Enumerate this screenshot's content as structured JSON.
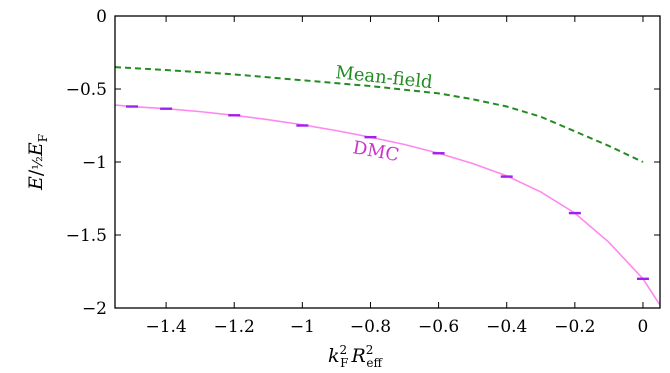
{
  "chart_data": {
    "type": "line",
    "xlabel": "k_F^2 R_eff^2",
    "ylabel": "E / ½ E_F",
    "xlim": [
      -1.55,
      0.05
    ],
    "ylim": [
      -2,
      0
    ],
    "x_ticks": [
      {
        "value": -1.4,
        "label": "−1.4"
      },
      {
        "value": -1.2,
        "label": "−1.2"
      },
      {
        "value": -1.0,
        "label": "−1"
      },
      {
        "value": -0.8,
        "label": "−0.8"
      },
      {
        "value": -0.6,
        "label": "−0.6"
      },
      {
        "value": -0.4,
        "label": "−0.4"
      },
      {
        "value": -0.2,
        "label": "−0.2"
      },
      {
        "value": 0.0,
        "label": "0"
      }
    ],
    "y_ticks": [
      {
        "value": 0,
        "label": "0"
      },
      {
        "value": -0.5,
        "label": "−0.5"
      },
      {
        "value": -1,
        "label": "−1"
      },
      {
        "value": -1.5,
        "label": "−1.5"
      },
      {
        "value": -2,
        "label": "−2"
      }
    ],
    "grid": false,
    "series": [
      {
        "name": "Mean-field",
        "style": "dashed",
        "color": "#228b22",
        "x": [
          -1.55,
          -1.4,
          -1.2,
          -1.0,
          -0.8,
          -0.6,
          -0.5,
          -0.4,
          -0.3,
          -0.2,
          -0.1,
          0.0
        ],
        "y": [
          -0.35,
          -0.37,
          -0.4,
          -0.44,
          -0.48,
          -0.53,
          -0.57,
          -0.62,
          -0.69,
          -0.79,
          -0.89,
          -1.0
        ]
      },
      {
        "name": "DMC",
        "style": "solid",
        "color": "#ff88ee",
        "marker_color": "#a020f0",
        "points_x": [
          -1.5,
          -1.4,
          -1.2,
          -1.0,
          -0.8,
          -0.6,
          -0.4,
          -0.2,
          0.0
        ],
        "points_y": [
          -0.62,
          -0.635,
          -0.68,
          -0.75,
          -0.83,
          -0.94,
          -1.1,
          -1.35,
          -1.8
        ],
        "curve_x": [
          -1.55,
          -1.5,
          -1.4,
          -1.3,
          -1.2,
          -1.1,
          -1.0,
          -0.9,
          -0.8,
          -0.7,
          -0.6,
          -0.5,
          -0.4,
          -0.3,
          -0.2,
          -0.1,
          0.0,
          0.05
        ],
        "curve_y": [
          -0.61,
          -0.62,
          -0.635,
          -0.655,
          -0.68,
          -0.71,
          -0.745,
          -0.785,
          -0.83,
          -0.88,
          -0.94,
          -1.01,
          -1.095,
          -1.205,
          -1.35,
          -1.55,
          -1.8,
          -1.98
        ]
      }
    ]
  }
}
